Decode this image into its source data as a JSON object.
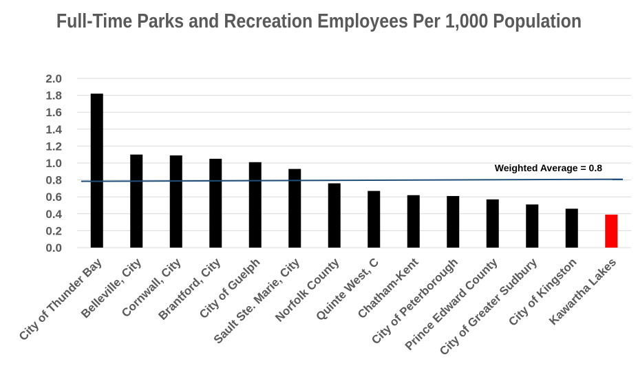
{
  "chart_data": {
    "type": "bar",
    "title": "Full-Time Parks and Recreation Employees Per 1,000 Population",
    "xlabel": "",
    "ylabel": "",
    "ylim": [
      0,
      2.0
    ],
    "yticks": [
      "0.0",
      "0.2",
      "0.4",
      "0.6",
      "0.8",
      "1.0",
      "1.2",
      "1.4",
      "1.6",
      "1.8",
      "2.0"
    ],
    "grid": true,
    "categories": [
      "City of Thunder Bay",
      "Belleville, City",
      "Cornwall, City",
      "Brantford, City",
      "City of Guelph",
      "Sault Ste. Marie, City",
      "Norfolk County",
      "Quinte West, C",
      "Chatham-Kent",
      "City of Peterborough",
      "Prince Edward County",
      "City of Greater Sudbury",
      "City of Kingston",
      "Kawartha Lakes"
    ],
    "values": [
      1.82,
      1.1,
      1.09,
      1.05,
      1.01,
      0.93,
      0.76,
      0.67,
      0.62,
      0.61,
      0.57,
      0.51,
      0.46,
      0.39
    ],
    "highlight_index": 13,
    "colors": {
      "bar": "#000000",
      "highlight": "#ff0000",
      "average": "#1f4e79",
      "grid": "#d9d9d9",
      "text": "#595959"
    },
    "reference_line": {
      "value": 0.8,
      "label": "Weighted Average = 0.8"
    }
  }
}
